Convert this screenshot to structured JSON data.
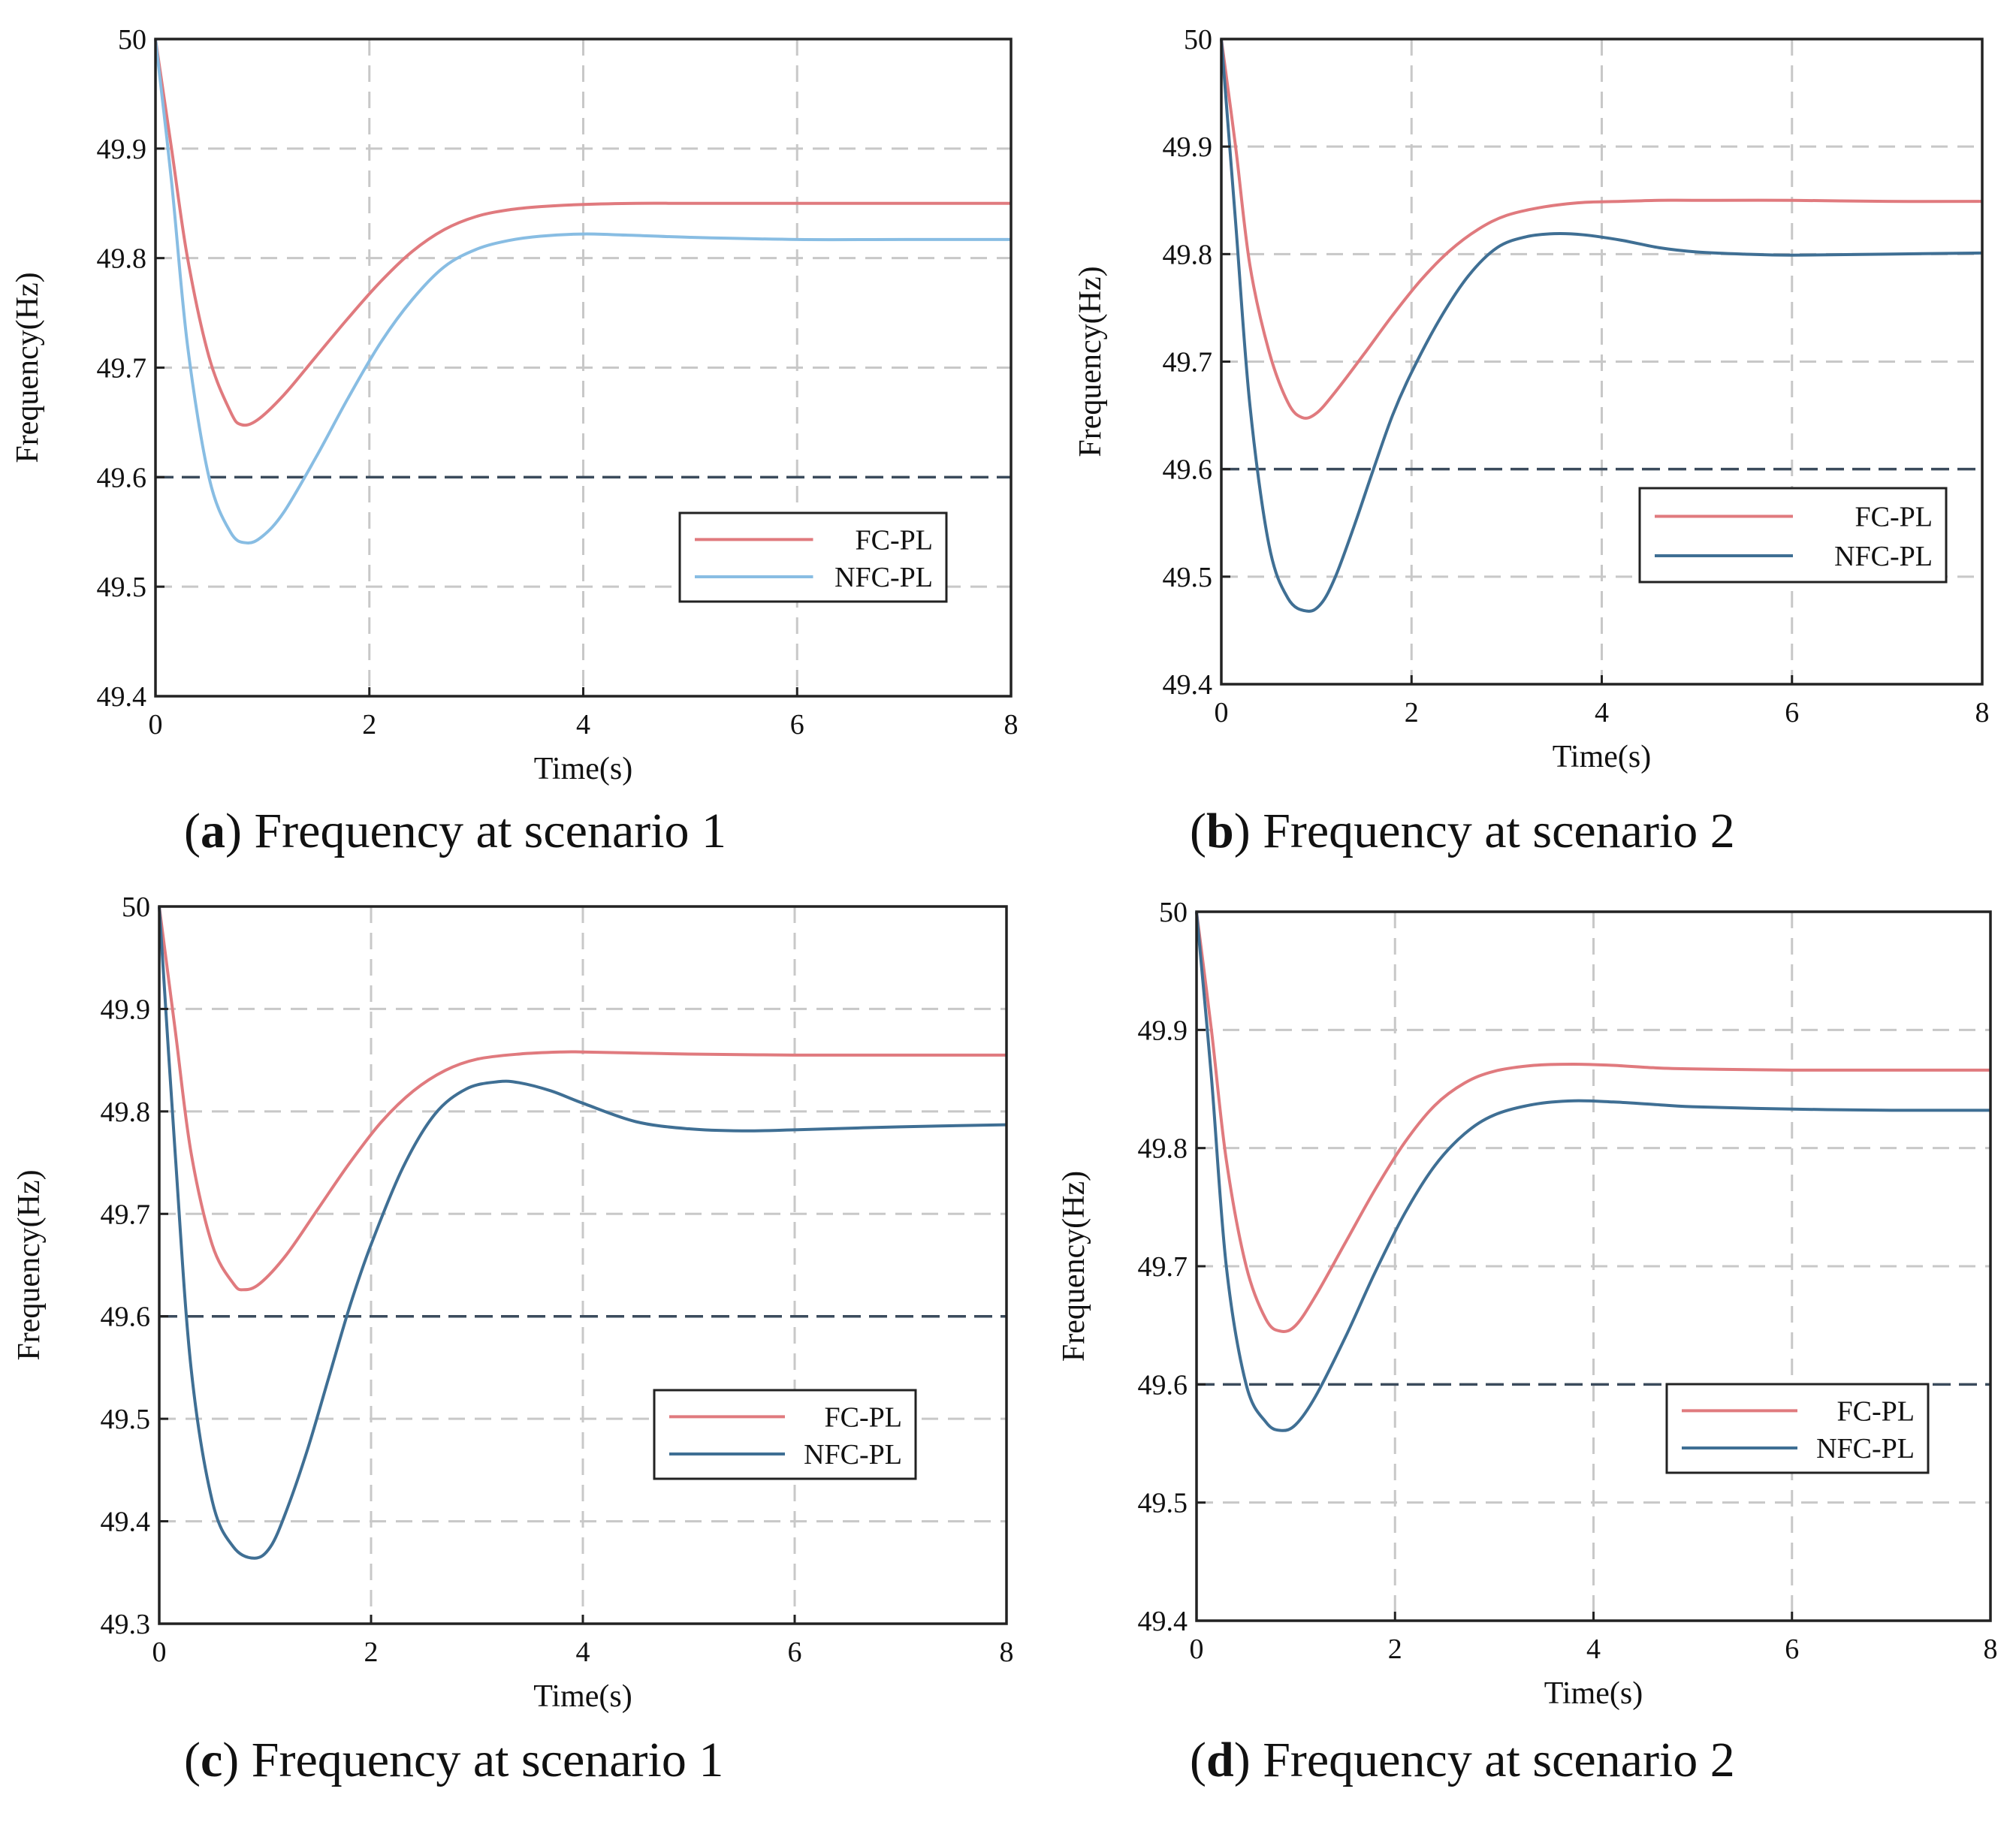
{
  "colors": {
    "fc": "#e07a7e",
    "nfc_light": "#88bde3",
    "nfc_dark": "#3f6f94",
    "grid": "#c8c8c8",
    "threshold": "#3b4b5c",
    "axis": "#222222"
  },
  "chart_data": [
    {
      "id": "a",
      "type": "line",
      "caption_letter": "a",
      "caption_text": " Frequency at scenario 1",
      "xlabel": "Time(s)",
      "ylabel": "Frequency(Hz)",
      "xlim": [
        0,
        8
      ],
      "ylim": [
        49.4,
        50
      ],
      "xticks": [
        0,
        2,
        4,
        6,
        8
      ],
      "xtick_labels": [
        "0",
        "2",
        "4",
        "6",
        "8"
      ],
      "yticks": [
        49.4,
        49.5,
        49.6,
        49.7,
        49.8,
        49.9,
        50
      ],
      "ytick_labels": [
        "49.4",
        "49.5",
        "49.6",
        "49.7",
        "49.8",
        "49.9",
        "50"
      ],
      "threshold": 49.6,
      "legend": "right",
      "series": [
        {
          "name": "FC-PL",
          "color_key": "fc",
          "x": [
            0,
            0.15,
            0.3,
            0.5,
            0.7,
            0.8,
            0.95,
            1.2,
            1.5,
            1.8,
            2.1,
            2.4,
            2.7,
            3.0,
            3.3,
            3.6,
            4.0,
            4.5,
            5.0,
            6.0,
            7.0,
            8.0
          ],
          "y": [
            50.0,
            49.9,
            49.8,
            49.71,
            49.66,
            49.648,
            49.652,
            49.675,
            49.71,
            49.745,
            49.778,
            49.806,
            49.826,
            49.838,
            49.844,
            49.847,
            49.849,
            49.85,
            49.85,
            49.85,
            49.85,
            49.85
          ]
        },
        {
          "name": "NFC-PL",
          "color_key": "nfc_light",
          "x": [
            0,
            0.15,
            0.3,
            0.5,
            0.7,
            0.85,
            1.0,
            1.2,
            1.5,
            1.8,
            2.1,
            2.4,
            2.7,
            3.0,
            3.3,
            3.6,
            4.0,
            4.4,
            5.0,
            6.0,
            7.0,
            8.0
          ],
          "y": [
            50.0,
            49.87,
            49.72,
            49.6,
            49.55,
            49.54,
            49.546,
            49.568,
            49.618,
            49.672,
            49.722,
            49.762,
            49.792,
            49.808,
            49.816,
            49.82,
            49.822,
            49.821,
            49.819,
            49.817,
            49.817,
            49.817
          ]
        }
      ]
    },
    {
      "id": "b",
      "type": "line",
      "caption_letter": "b",
      "caption_text": " Frequency at scenario 2",
      "xlabel": "Time(s)",
      "ylabel": "Frequency(Hz)",
      "xlim": [
        0,
        8
      ],
      "ylim": [
        49.4,
        50
      ],
      "xticks": [
        0,
        2,
        4,
        6,
        8
      ],
      "xtick_labels": [
        "0",
        "2",
        "4",
        "6",
        "8"
      ],
      "yticks": [
        49.4,
        49.5,
        49.6,
        49.7,
        49.8,
        49.9,
        50
      ],
      "ytick_labels": [
        "49.4",
        "49.5",
        "49.6",
        "49.7",
        "49.8",
        "49.9",
        "50"
      ],
      "threshold": 49.6,
      "legend": "right",
      "series": [
        {
          "name": "FC-PL",
          "color_key": "fc",
          "x": [
            0,
            0.15,
            0.3,
            0.5,
            0.7,
            0.85,
            1.0,
            1.2,
            1.5,
            1.8,
            2.1,
            2.4,
            2.7,
            3.0,
            3.4,
            3.8,
            4.2,
            4.6,
            5.0,
            6.0,
            7.0,
            8.0
          ],
          "y": [
            50.0,
            49.9,
            49.79,
            49.71,
            49.662,
            49.648,
            49.652,
            49.672,
            49.707,
            49.743,
            49.776,
            49.803,
            49.823,
            49.836,
            49.844,
            49.848,
            49.849,
            49.85,
            49.85,
            49.85,
            49.849,
            49.849
          ]
        },
        {
          "name": "NFC-PL",
          "color_key": "nfc_dark",
          "x": [
            0,
            0.15,
            0.3,
            0.5,
            0.7,
            0.9,
            1.05,
            1.2,
            1.4,
            1.6,
            1.8,
            2.0,
            2.3,
            2.6,
            2.9,
            3.2,
            3.5,
            3.8,
            4.2,
            4.6,
            5.0,
            5.5,
            6.0,
            7.0,
            8.0
          ],
          "y": [
            50.0,
            49.83,
            49.66,
            49.53,
            49.48,
            49.468,
            49.475,
            49.5,
            49.548,
            49.6,
            49.65,
            49.69,
            49.74,
            49.78,
            49.806,
            49.816,
            49.819,
            49.818,
            49.813,
            49.806,
            49.802,
            49.8,
            49.799,
            49.8,
            49.801
          ]
        }
      ]
    },
    {
      "id": "c",
      "type": "line",
      "caption_letter": "c",
      "caption_text": " Frequency at scenario 1",
      "xlabel": "Time(s)",
      "ylabel": "Frequency(Hz)",
      "xlim": [
        0,
        8
      ],
      "ylim": [
        49.3,
        50
      ],
      "xticks": [
        0,
        2,
        4,
        6,
        8
      ],
      "xtick_labels": [
        "0",
        "2",
        "4",
        "6",
        "8"
      ],
      "yticks": [
        49.3,
        49.4,
        49.5,
        49.6,
        49.7,
        49.8,
        49.9,
        50
      ],
      "ytick_labels": [
        "49.3",
        "49.4",
        "49.5",
        "49.6",
        "49.7",
        "49.8",
        "49.9",
        "50"
      ],
      "threshold": 49.6,
      "legend": "right",
      "series": [
        {
          "name": "FC-PL",
          "color_key": "fc",
          "x": [
            0,
            0.15,
            0.3,
            0.5,
            0.7,
            0.8,
            0.95,
            1.2,
            1.5,
            1.8,
            2.1,
            2.4,
            2.7,
            3.0,
            3.4,
            3.8,
            4.0,
            4.5,
            5.0,
            6.0,
            7.0,
            8.0
          ],
          "y": [
            50.0,
            49.88,
            49.76,
            49.67,
            49.632,
            49.626,
            49.632,
            49.66,
            49.705,
            49.75,
            49.79,
            49.82,
            49.84,
            49.851,
            49.856,
            49.858,
            49.858,
            49.857,
            49.856,
            49.855,
            49.855,
            49.855
          ]
        },
        {
          "name": "NFC-PL",
          "color_key": "nfc_dark",
          "x": [
            0,
            0.15,
            0.3,
            0.5,
            0.7,
            0.9,
            1.05,
            1.2,
            1.4,
            1.6,
            1.8,
            2.0,
            2.3,
            2.6,
            2.9,
            3.2,
            3.4,
            3.7,
            4.0,
            4.5,
            5.0,
            5.5,
            6.0,
            7.0,
            8.0
          ],
          "y": [
            50.0,
            49.76,
            49.55,
            49.42,
            49.375,
            49.364,
            49.375,
            49.41,
            49.47,
            49.54,
            49.61,
            49.67,
            49.745,
            49.797,
            49.822,
            49.829,
            49.828,
            49.82,
            49.808,
            49.79,
            49.783,
            49.781,
            49.782,
            49.785,
            49.787
          ]
        }
      ]
    },
    {
      "id": "d",
      "type": "line",
      "caption_letter": "d",
      "caption_text": " Frequency at scenario 2",
      "xlabel": "Time(s)",
      "ylabel": "Frequency(Hz)",
      "xlim": [
        0,
        8
      ],
      "ylim": [
        49.4,
        50
      ],
      "xticks": [
        0,
        2,
        4,
        6,
        8
      ],
      "xtick_labels": [
        "0",
        "2",
        "4",
        "6",
        "8"
      ],
      "yticks": [
        49.4,
        49.5,
        49.6,
        49.7,
        49.8,
        49.9,
        50
      ],
      "ytick_labels": [
        "49.4",
        "49.5",
        "49.6",
        "49.7",
        "49.8",
        "49.9",
        "50"
      ],
      "threshold": 49.6,
      "legend": "right",
      "series": [
        {
          "name": "FC-PL",
          "color_key": "fc",
          "x": [
            0,
            0.15,
            0.3,
            0.5,
            0.7,
            0.85,
            1.0,
            1.2,
            1.5,
            1.8,
            2.1,
            2.4,
            2.7,
            3.0,
            3.4,
            3.8,
            4.2,
            4.6,
            5.0,
            6.0,
            7.0,
            8.0
          ],
          "y": [
            50.0,
            49.9,
            49.79,
            49.7,
            49.655,
            49.645,
            49.65,
            49.675,
            49.72,
            49.765,
            49.805,
            49.836,
            49.855,
            49.865,
            49.87,
            49.871,
            49.87,
            49.868,
            49.867,
            49.866,
            49.866,
            49.866
          ]
        },
        {
          "name": "NFC-PL",
          "color_key": "nfc_dark",
          "x": [
            0,
            0.15,
            0.3,
            0.5,
            0.7,
            0.85,
            1.0,
            1.2,
            1.5,
            1.8,
            2.1,
            2.4,
            2.7,
            3.0,
            3.4,
            3.8,
            4.2,
            4.6,
            5.0,
            6.0,
            7.0,
            8.0
          ],
          "y": [
            50.0,
            49.86,
            49.7,
            49.6,
            49.568,
            49.561,
            49.566,
            49.59,
            49.64,
            49.695,
            49.745,
            49.785,
            49.812,
            49.828,
            49.837,
            49.84,
            49.839,
            49.837,
            49.835,
            49.833,
            49.832,
            49.832
          ]
        }
      ]
    }
  ]
}
